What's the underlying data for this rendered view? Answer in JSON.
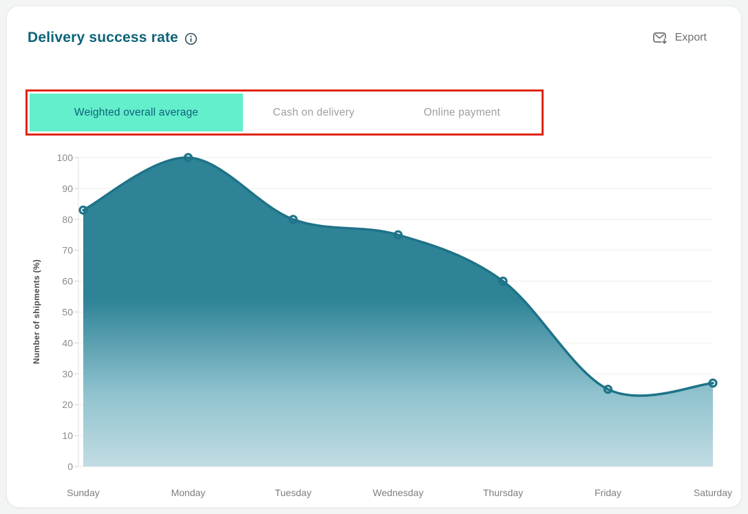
{
  "header": {
    "title": "Delivery success rate",
    "export_label": "Export"
  },
  "tabs": [
    {
      "label": "Weighted overall average",
      "active": true
    },
    {
      "label": "Cash on delivery",
      "active": false
    },
    {
      "label": "Online payment",
      "active": false
    }
  ],
  "colors": {
    "title-teal": "#0d6378",
    "accent-mint": "#63eecc",
    "annotation-red": "#e02417",
    "page-bg": "#f3f4f4"
  },
  "chart_data": {
    "type": "area",
    "title": "Delivery success rate",
    "categories": [
      "Sunday",
      "Monday",
      "Tuesday",
      "Wednesday",
      "Thursday",
      "Friday",
      "Saturday"
    ],
    "values": [
      83,
      100,
      80,
      75,
      60,
      25,
      27
    ],
    "xlabel": "",
    "ylabel": "Number of shipments (%)",
    "ylim": [
      0,
      100
    ],
    "ytick_step": 10,
    "grid": true,
    "smooth": true,
    "legend": "none",
    "line_color": "#1e7388",
    "area_top_color": "#2e8397",
    "area_mid_color": "#8fc2ce",
    "area_bottom_color": "#c2dce3",
    "grid_color": "#ededed",
    "axis_line_color": "#e0e0e0"
  }
}
